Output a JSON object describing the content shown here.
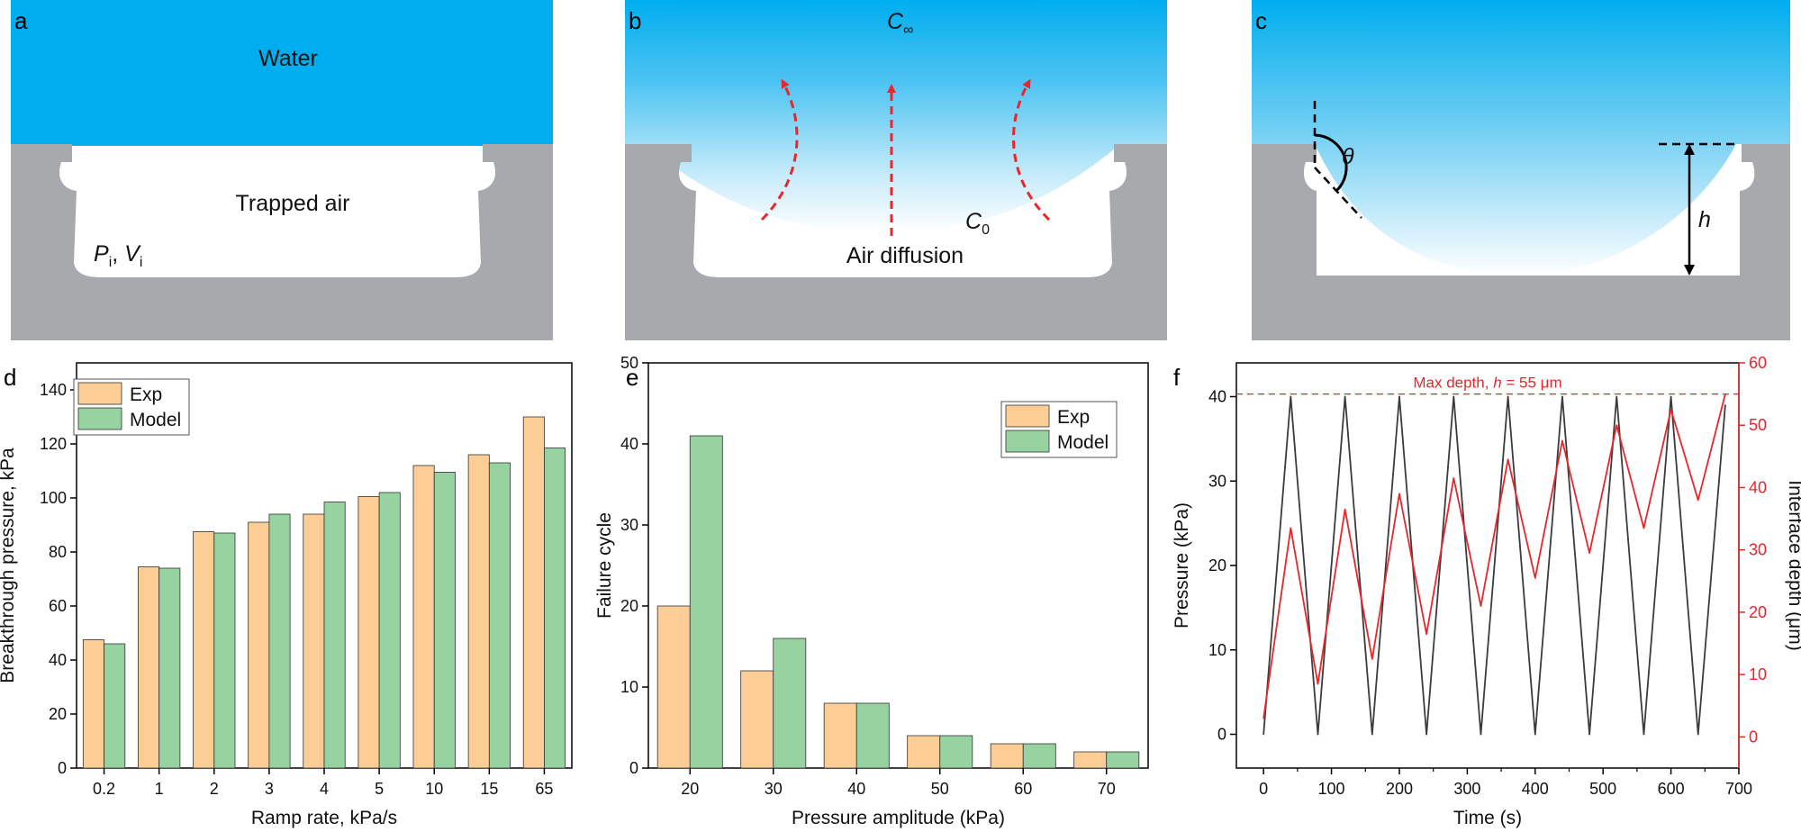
{
  "panels": {
    "a": {
      "label": "a",
      "water_label": "Water",
      "air_label": "Trapped air",
      "p_symbol": "P",
      "p_sub": "i",
      "separator": ", ",
      "v_symbol": "V",
      "v_sub": "i"
    },
    "b": {
      "label": "b",
      "c_inf_symbol": "C",
      "c_inf_sub": "∞",
      "c0_symbol": "C",
      "c0_sub": "0",
      "diffusion_label": "Air diffusion"
    },
    "c": {
      "label": "c",
      "theta_label": "θ",
      "h_label": "h"
    },
    "d": {
      "label": "d"
    },
    "e": {
      "label": "e"
    },
    "f": {
      "label": "f"
    }
  },
  "colors": {
    "water": "#00aeef",
    "substrate": "#a7a9ac",
    "exp_bar": "#fdcd96",
    "model_bar": "#96d3a0",
    "depth_line": "#e8262b",
    "pressure_line": "#3c3c3c",
    "arrow": "#e8262b"
  },
  "chart_data": [
    {
      "id": "d",
      "type": "bar",
      "title": "",
      "xlabel": "Ramp rate, kPa/s",
      "ylabel": "Breakthrough pressure, kPa",
      "categories": [
        "0.2",
        "1",
        "2",
        "3",
        "4",
        "5",
        "10",
        "15",
        "65"
      ],
      "series": [
        {
          "name": "Exp",
          "values": [
            47.5,
            74.5,
            87.5,
            91,
            94,
            100.5,
            112,
            116,
            130
          ]
        },
        {
          "name": "Model",
          "values": [
            46,
            74,
            87,
            94,
            98.5,
            102,
            109.5,
            113,
            118.5
          ]
        }
      ],
      "ylim": [
        0,
        150
      ],
      "yticks": [
        0,
        20,
        40,
        60,
        80,
        100,
        120,
        140
      ],
      "legend": "top-left"
    },
    {
      "id": "e",
      "type": "bar",
      "title": "",
      "xlabel": "Pressure amplitude (kPa)",
      "ylabel": "Failure cycle",
      "categories": [
        "20",
        "30",
        "40",
        "50",
        "60",
        "70"
      ],
      "series": [
        {
          "name": "Exp",
          "values": [
            20,
            12,
            8,
            4,
            3,
            2
          ]
        },
        {
          "name": "Model",
          "values": [
            41,
            16,
            8,
            4,
            3,
            2
          ]
        }
      ],
      "ylim": [
        0,
        50
      ],
      "yticks": [
        0,
        10,
        20,
        30,
        40,
        50
      ],
      "legend": "top-right"
    },
    {
      "id": "f",
      "type": "line",
      "title": "",
      "xlabel": "Time (s)",
      "ylabel": "Pressure (kPa)",
      "y2label": "Interface depth (μm)",
      "xlim": [
        -40,
        700
      ],
      "xticks": [
        0,
        100,
        200,
        300,
        400,
        500,
        600,
        700
      ],
      "ylim": [
        -4,
        44
      ],
      "yticks": [
        0,
        10,
        20,
        30,
        40
      ],
      "y2lim": [
        -5,
        60
      ],
      "y2ticks": [
        0,
        10,
        20,
        30,
        40,
        50,
        60
      ],
      "series": [
        {
          "name": "Pressure",
          "axis": "left",
          "x": [
            0,
            40,
            80,
            120,
            160,
            200,
            240,
            280,
            320,
            360,
            400,
            440,
            480,
            520,
            560,
            600,
            640,
            680
          ],
          "y": [
            0,
            40,
            0,
            40,
            0,
            40,
            0,
            40,
            0,
            40,
            0,
            40,
            0,
            40,
            0,
            40,
            0,
            39
          ]
        },
        {
          "name": "Interface depth",
          "axis": "right",
          "x": [
            0,
            40,
            80,
            120,
            160,
            200,
            240,
            280,
            320,
            360,
            400,
            440,
            480,
            520,
            560,
            600,
            640,
            680
          ],
          "y": [
            3,
            33.5,
            8.5,
            36.5,
            12.5,
            39,
            16.5,
            41.5,
            21,
            44.5,
            25.5,
            47.5,
            29.5,
            50,
            33.5,
            52.5,
            38,
            55
          ]
        }
      ],
      "reference_line": {
        "value": 55,
        "axis": "right",
        "label_prefix": "Max depth, ",
        "label_symbol": "h",
        "label_suffix": " = 55 μm"
      }
    }
  ]
}
